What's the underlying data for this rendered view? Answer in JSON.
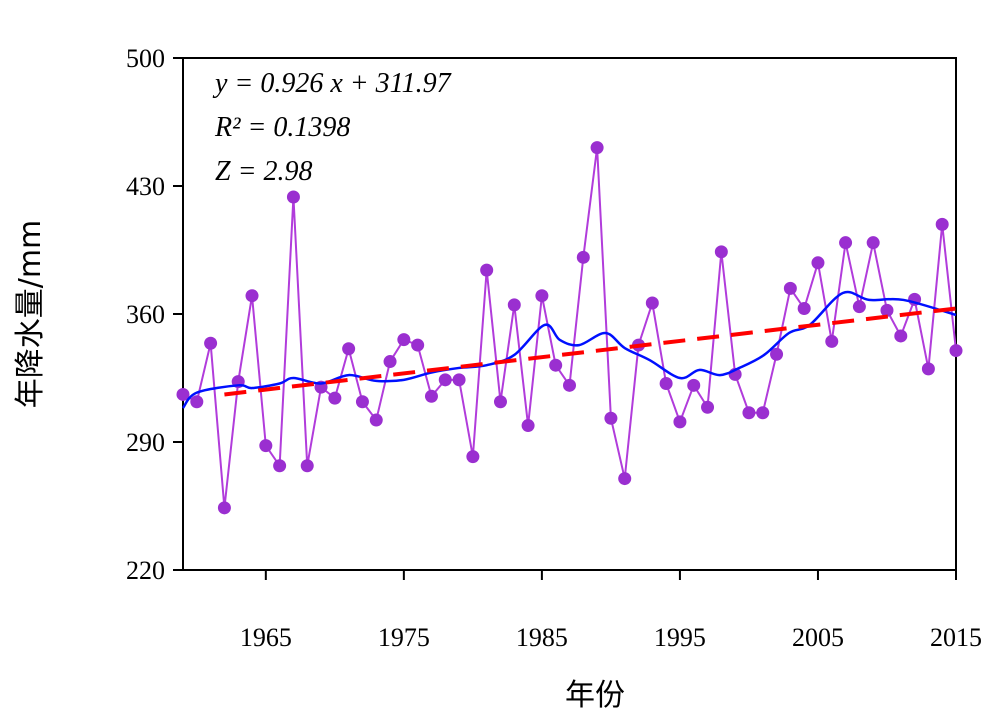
{
  "chart_data": {
    "type": "line",
    "x_label": "年份",
    "y_label": "年降水量/mm",
    "annotations": [
      "y = 0.926 x + 311.97",
      "R² = 0.1398",
      "Z = 2.98"
    ],
    "xlim": [
      1959,
      2015
    ],
    "ylim": [
      220,
      500
    ],
    "xticks": [
      1965,
      1975,
      1985,
      1995,
      2005,
      2015
    ],
    "yticks": [
      220,
      290,
      360,
      430,
      500
    ],
    "series": [
      {
        "color": "#b13cdb",
        "marker_color": "#9a2fd0",
        "style": "markers",
        "x": [
          1959,
          1960,
          1961,
          1962,
          1963,
          1964,
          1965,
          1966,
          1967,
          1968,
          1969,
          1970,
          1971,
          1972,
          1973,
          1974,
          1975,
          1976,
          1977,
          1978,
          1979,
          1980,
          1981,
          1982,
          1983,
          1984,
          1985,
          1986,
          1987,
          1988,
          1989,
          1990,
          1991,
          1992,
          1993,
          1994,
          1995,
          1996,
          1997,
          1998,
          1999,
          2000,
          2001,
          2002,
          2003,
          2004,
          2005,
          2006,
          2007,
          2008,
          2009,
          2010,
          2011,
          2012,
          2013,
          2014,
          2015
        ],
        "values": [
          316,
          312,
          344,
          254,
          323,
          370,
          288,
          277,
          424,
          277,
          320,
          314,
          341,
          312,
          302,
          334,
          346,
          343,
          315,
          324,
          324,
          282,
          384,
          312,
          365,
          299,
          370,
          332,
          321,
          391,
          451,
          303,
          270,
          343,
          366,
          322,
          301,
          321,
          309,
          394,
          327,
          306,
          306,
          338,
          374,
          363,
          388,
          345,
          399,
          364,
          399,
          362,
          348,
          368,
          330,
          409,
          340
        ]
      },
      {
        "color": "#0010ff",
        "style": "smooth",
        "x": [
          1959,
          1960,
          1963,
          1964,
          1966,
          1967,
          1969,
          1971,
          1973,
          1975,
          1977,
          1979,
          1981,
          1983,
          1985.2,
          1986.3,
          1987.7,
          1989.6,
          1991,
          1992.8,
          1995,
          1996.4,
          1997.9,
          1999.3,
          2001.1,
          2002.9,
          2004.4,
          2006.8,
          2008.7,
          2011.2,
          2015
        ],
        "values": [
          308.6,
          317,
          321,
          319.5,
          322,
          325,
          322,
          326.6,
          323.4,
          324,
          328,
          330.5,
          332,
          337.6,
          354,
          345.8,
          343,
          349.6,
          341.4,
          334.8,
          325,
          329.4,
          326.6,
          330.5,
          337.6,
          349.6,
          354,
          371.5,
          367.7,
          367.7,
          359.5
        ]
      },
      {
        "color": "#ff0000",
        "style": "dashed",
        "x": [
          1962,
          2015
        ],
        "values": [
          316,
          363
        ]
      }
    ]
  }
}
